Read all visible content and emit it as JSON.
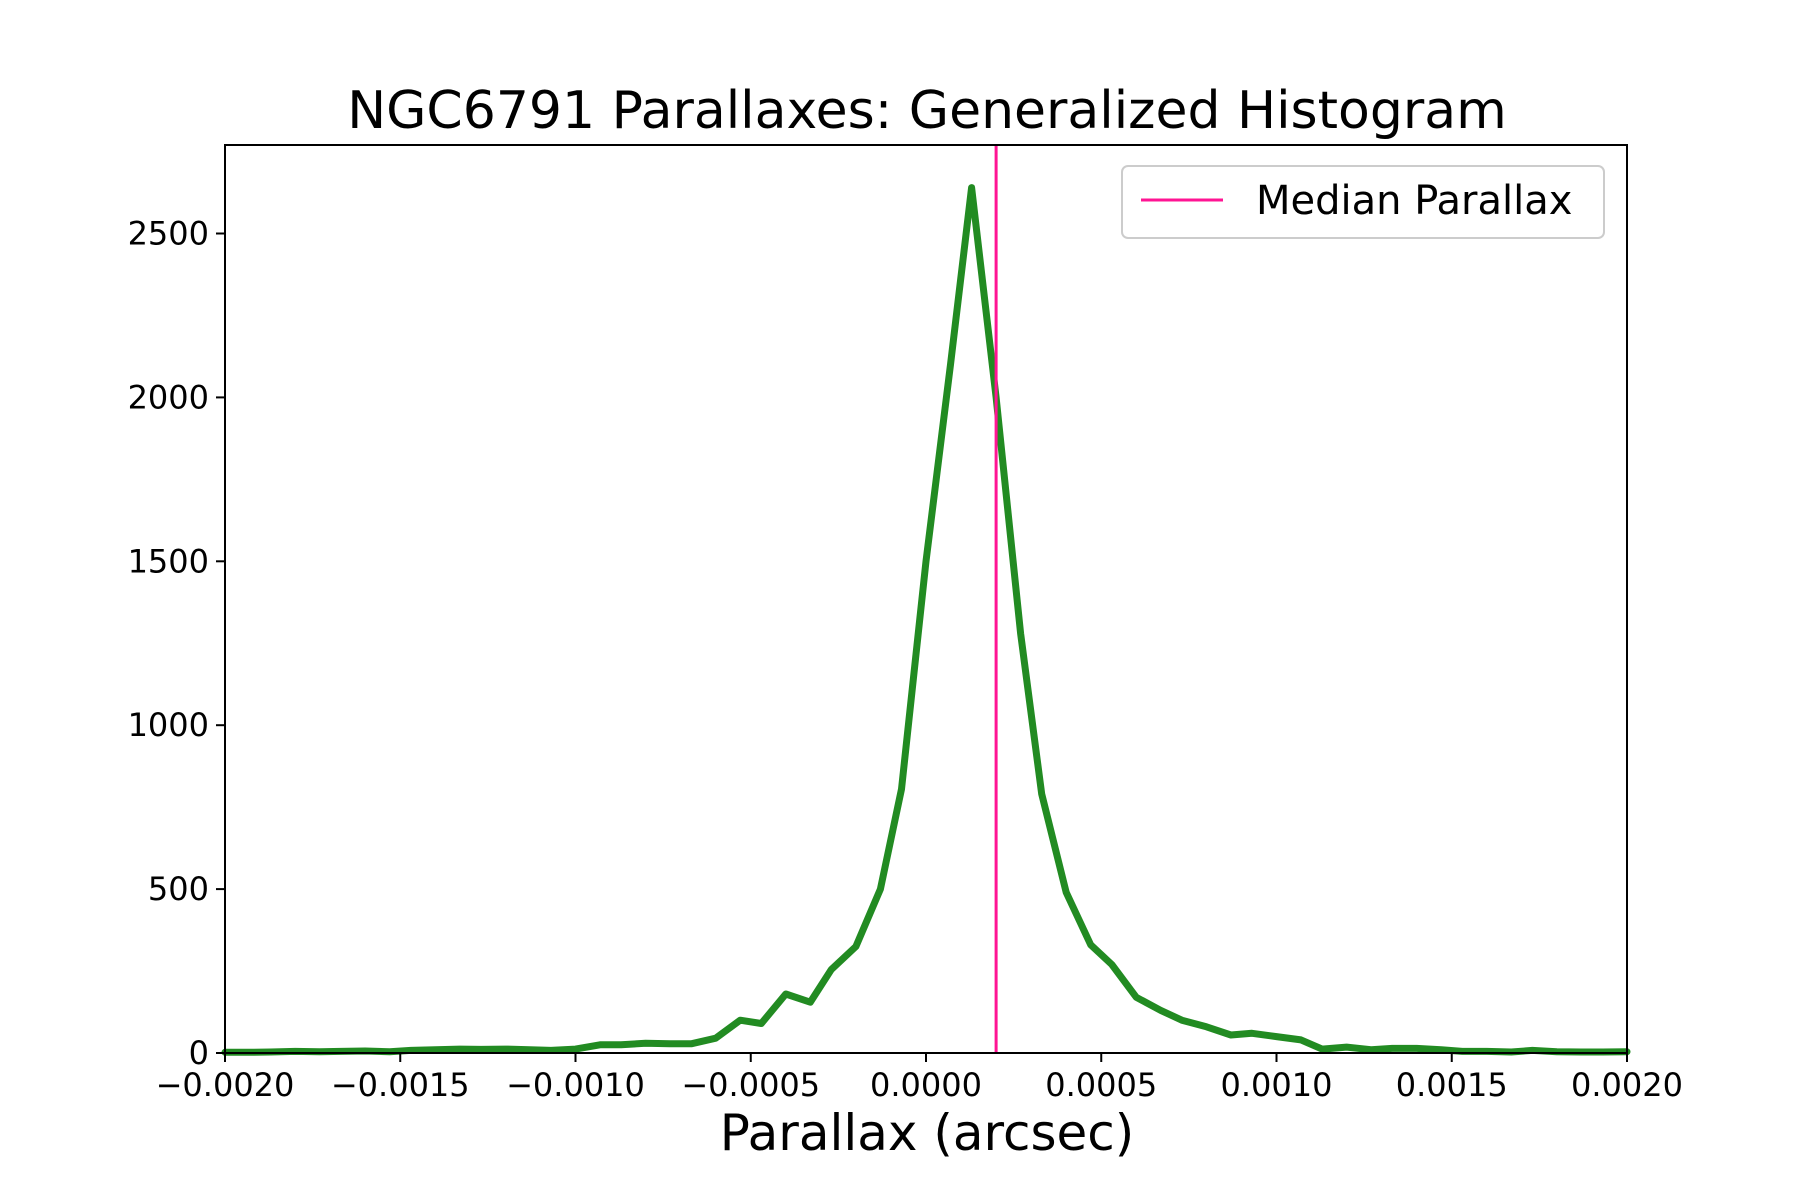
{
  "chart_data": {
    "type": "line",
    "title": "NGC6791 Parallaxes: Generalized Histogram",
    "xlabel": "Parallax (arcsec)",
    "ylabel": "",
    "xlim": [
      -0.002,
      0.002
    ],
    "ylim": [
      0,
      2770
    ],
    "xticks": [
      -0.002,
      -0.0015,
      -0.001,
      -0.0005,
      0.0,
      0.0005,
      0.001,
      0.0015,
      0.002
    ],
    "xtick_labels": [
      "−0.0020",
      "−0.0015",
      "−0.0010",
      "−0.0005",
      "0.0000",
      "0.0005",
      "0.0010",
      "0.0015",
      "0.0020"
    ],
    "yticks": [
      0,
      500,
      1000,
      1500,
      2000,
      2500
    ],
    "ytick_labels": [
      "0",
      "500",
      "1000",
      "1500",
      "2000",
      "2500"
    ],
    "grid": false,
    "legend_position": "top-right",
    "median_line": {
      "name": "Median Parallax",
      "x": 0.0002,
      "color": "#ff1493"
    },
    "series": [
      {
        "color": "#228b22",
        "x": [
          -0.002,
          -0.00193,
          -0.00187,
          -0.0018,
          -0.00173,
          -0.00167,
          -0.0016,
          -0.00153,
          -0.00147,
          -0.0014,
          -0.00133,
          -0.00127,
          -0.0012,
          -0.00113,
          -0.00107,
          -0.001,
          -0.00093,
          -0.00087,
          -0.0008,
          -0.00073,
          -0.00067,
          -0.0006,
          -0.00053,
          -0.00047,
          -0.0004,
          -0.00033,
          -0.00027,
          -0.0002,
          -0.00013,
          -7e-05,
          0.0,
          7e-05,
          0.00013,
          0.0002,
          0.00027,
          0.00033,
          0.0004,
          0.00047,
          0.00053,
          0.0006,
          0.00067,
          0.00073,
          0.0008,
          0.00087,
          0.00093,
          0.001,
          0.00107,
          0.00113,
          0.0012,
          0.00127,
          0.00133,
          0.0014,
          0.00147,
          0.00153,
          0.0016,
          0.00167,
          0.00173,
          0.0018,
          0.00187,
          0.00193,
          0.002
        ],
        "values": [
          2,
          2,
          3,
          5,
          4,
          5,
          6,
          4,
          8,
          10,
          12,
          11,
          12,
          10,
          8,
          12,
          25,
          25,
          30,
          28,
          28,
          45,
          100,
          90,
          180,
          155,
          255,
          325,
          500,
          805,
          1500,
          2100,
          2640,
          2000,
          1280,
          790,
          490,
          330,
          270,
          170,
          130,
          100,
          80,
          55,
          60,
          50,
          40,
          12,
          18,
          10,
          14,
          14,
          10,
          5,
          5,
          3,
          8,
          4,
          3,
          3,
          4
        ]
      }
    ]
  }
}
